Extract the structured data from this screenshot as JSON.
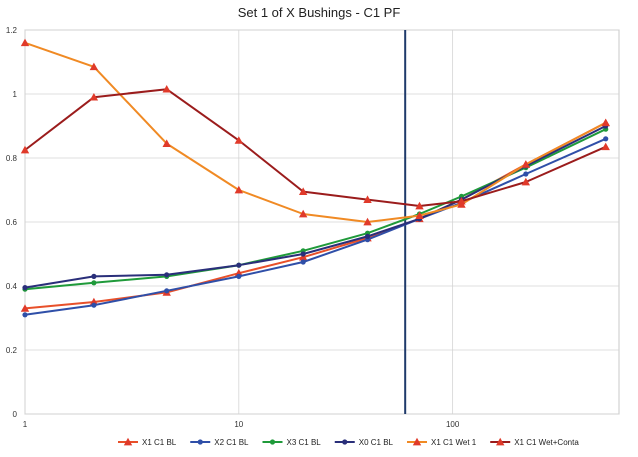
{
  "chart_data": {
    "type": "line",
    "title": "Set 1 of X Bushings - C1 PF",
    "xlabel": "",
    "ylabel": "",
    "x_scale": "log",
    "xlim": [
      1,
      600
    ],
    "ylim": [
      0,
      1.2
    ],
    "x_ticks": [
      1,
      10,
      100
    ],
    "y_ticks": [
      0,
      0.2,
      0.4,
      0.6,
      0.8,
      1,
      1.2
    ],
    "y_tick_labels": [
      "0",
      "0.2",
      "0.4",
      "0.6",
      "0.8",
      "1",
      "1.2"
    ],
    "grid": true,
    "legend_position": "bottom",
    "vertical_marker_x": 60,
    "vertical_marker_color": "#1f3a6b",
    "x": [
      1,
      2.1,
      4.6,
      10,
      20,
      40,
      70,
      110,
      220,
      520
    ],
    "series": [
      {
        "name": "X1 C1 BL",
        "color": "#e8502a",
        "marker": "triangle",
        "values": [
          0.33,
          0.35,
          0.38,
          0.44,
          0.49,
          0.55,
          0.61,
          0.67,
          0.78,
          0.91
        ]
      },
      {
        "name": "X2 C1 BL",
        "color": "#2f4fa8",
        "marker": "circle",
        "values": [
          0.31,
          0.34,
          0.385,
          0.43,
          0.475,
          0.545,
          0.61,
          0.66,
          0.75,
          0.86
        ]
      },
      {
        "name": "X3 C1 BL",
        "color": "#1f9a3a",
        "marker": "circle",
        "values": [
          0.39,
          0.41,
          0.43,
          0.465,
          0.51,
          0.565,
          0.625,
          0.68,
          0.77,
          0.89
        ]
      },
      {
        "name": "X0 C1 BL",
        "color": "#2a2f7a",
        "marker": "circle",
        "values": [
          0.395,
          0.43,
          0.435,
          0.465,
          0.5,
          0.555,
          0.61,
          0.67,
          0.775,
          0.9
        ]
      },
      {
        "name": "X1 C1 Wet 1",
        "color": "#f08a24",
        "marker": "triangle",
        "values": [
          1.16,
          1.085,
          0.845,
          0.7,
          0.625,
          0.6,
          0.62,
          0.655,
          0.78,
          0.91
        ]
      },
      {
        "name": "X1 C1 Wet+Conta",
        "color": "#9b1c1c",
        "marker": "triangle",
        "values": [
          0.825,
          0.99,
          1.015,
          0.855,
          0.695,
          0.67,
          0.65,
          0.665,
          0.725,
          0.835
        ]
      }
    ]
  }
}
